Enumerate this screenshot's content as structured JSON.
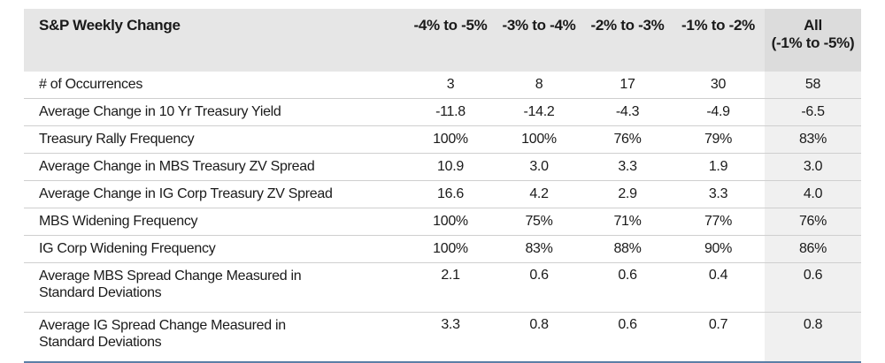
{
  "table": {
    "header": {
      "label": "S&P Weekly Change",
      "columns": [
        {
          "line1": "-4% to -5%",
          "line2": ""
        },
        {
          "line1": "-3% to -4%",
          "line2": ""
        },
        {
          "line1": "-2% to -3%",
          "line2": ""
        },
        {
          "line1": "-1% to -2%",
          "line2": ""
        },
        {
          "line1": "All",
          "line2": "(-1% to -5%)"
        }
      ]
    },
    "rows": [
      {
        "label": "# of Occurrences",
        "values": [
          "3",
          "8",
          "17",
          "30",
          "58"
        ]
      },
      {
        "label": "Average Change in 10 Yr Treasury Yield",
        "values": [
          "-11.8",
          "-14.2",
          "-4.3",
          "-4.9",
          "-6.5"
        ]
      },
      {
        "label": "Treasury Rally Frequency",
        "values": [
          "100%",
          "100%",
          "76%",
          "79%",
          "83%"
        ]
      },
      {
        "label": "Average Change in MBS Treasury ZV Spread",
        "values": [
          "10.9",
          "3.0",
          "3.3",
          "1.9",
          "3.0"
        ]
      },
      {
        "label": "Average Change in IG Corp Treasury ZV Spread",
        "values": [
          "16.6",
          "4.2",
          "2.9",
          "3.3",
          "4.0"
        ]
      },
      {
        "label": "MBS Widening Frequency",
        "values": [
          "100%",
          "75%",
          "71%",
          "77%",
          "76%"
        ]
      },
      {
        "label": "IG Corp Widening Frequency",
        "values": [
          "100%",
          "83%",
          "88%",
          "90%",
          "86%"
        ]
      },
      {
        "label": "Average MBS Spread Change Measured in",
        "label2": "Standard Deviations",
        "values": [
          "2.1",
          "0.6",
          "0.6",
          "0.4",
          "0.6"
        ]
      },
      {
        "label": "Average IG Spread Change Measured in",
        "label2": "Standard Deviations",
        "values": [
          "3.3",
          "0.8",
          "0.6",
          "0.7",
          "0.8"
        ]
      }
    ]
  },
  "colors": {
    "header_bg": "#e6e6e6",
    "last_col_bg": "#f0f0f0",
    "bottom_rule": "#5b7fa6"
  }
}
